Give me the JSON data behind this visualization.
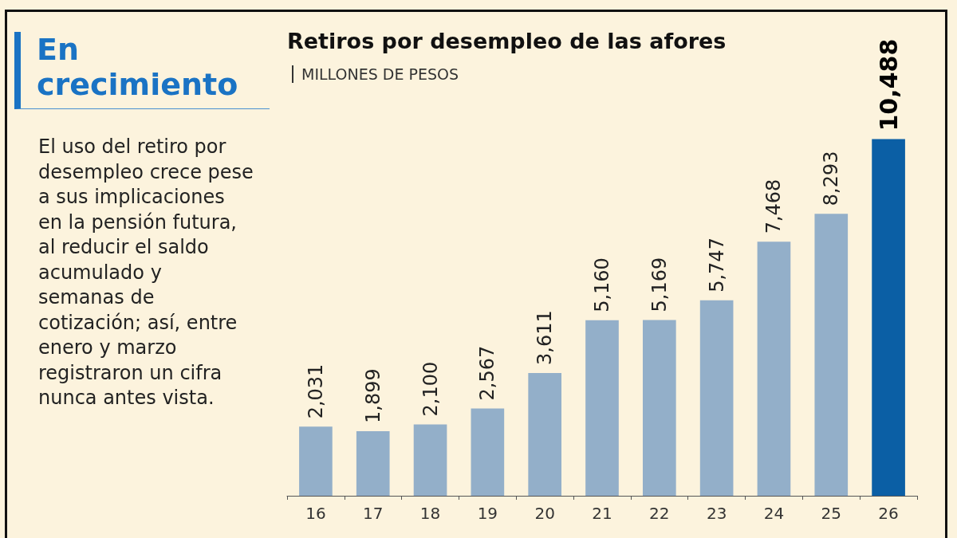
{
  "chart_data": {
    "type": "bar",
    "title": "Retiros por desempleo de las afores",
    "subtitle": "MILLONES DE PESOS",
    "annotations": [
      "En crecimiento",
      "El uso del retiro por desempleo crece pese a sus implicaciones en la pensión futura, al reducir el saldo acumulado y semanas de cotización; así, entre enero y marzo registraron un cifra nunca antes vista."
    ],
    "categories": [
      "16",
      "17",
      "18",
      "19",
      "20",
      "21",
      "22",
      "23",
      "24",
      "25",
      "26"
    ],
    "values": [
      2031,
      1899,
      2100,
      2567,
      3611,
      5160,
      5169,
      5747,
      7468,
      8293,
      10488
    ],
    "colors": [
      "#93afc9",
      "#93afc9",
      "#93afc9",
      "#93afc9",
      "#93afc9",
      "#93afc9",
      "#93afc9",
      "#93afc9",
      "#93afc9",
      "#93afc9",
      "#0b5fa5"
    ],
    "value_labels": [
      "2,031",
      "1,899",
      "2,100",
      "2,567",
      "3,611",
      "5,160",
      "5,169",
      "5,747",
      "7,468",
      "8,293",
      "10,488"
    ]
  }
}
